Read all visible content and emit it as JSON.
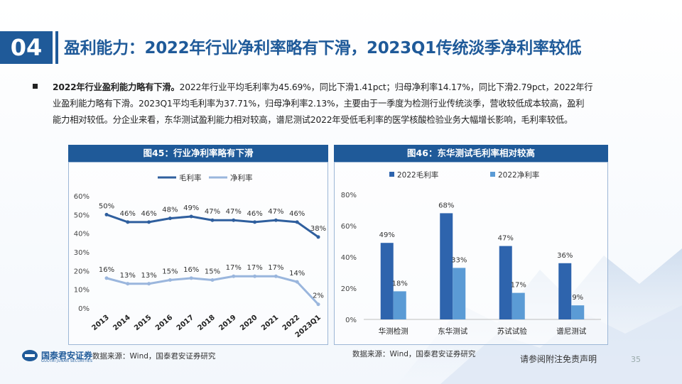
{
  "header": {
    "section_number": "04",
    "title": "盈利能力：2022年行业净利率略有下滑，2023Q1传统淡季净利率较低"
  },
  "bullet": {
    "lead": "2022年行业盈利能力略有下滑。",
    "line1": "2022年行业平均毛利率为45.69%，同比下滑1.41pct；归母净利率14.17%，同比下滑2.79pct，2022年行",
    "line2": "业盈利能力略有下滑。2023Q1平均毛利率为37.71%，归母净利率2.13%，主要由于一季度为检测行业传统淡季，营收较低成本较高，盈利",
    "line3": "能力相对较低。分企业来看，东华测试盈利能力相对较高，谱尼测试2022年受低毛利率的医学核酸检验业务大幅增长影响，毛利率较低。"
  },
  "chart1": {
    "panel_title": "图45：行业净利率略有下滑",
    "source": "数据来源：Wind，国泰君安证券研究"
  },
  "chart2": {
    "panel_title": "图46：东华测试毛利率相对较高",
    "source": "数据来源：Wind，国泰君安证券研究"
  },
  "footer": {
    "logo_text": "国泰君安证券",
    "logo_sub": "GUOTAI JUNAN SECURITIES",
    "disclaimer": "请参阅附注免责声明",
    "page_number": "35"
  },
  "colors": {
    "brand": "#1f5a99",
    "series_dark": "#2f5f9e",
    "series_light": "#9ab6dd",
    "bar_dark": "#2e64ad",
    "bar_light": "#5b9bd5"
  },
  "chart_data": [
    {
      "type": "line",
      "title": "图45：行业净利率略有下滑",
      "x": [
        "2013",
        "2014",
        "2015",
        "2016",
        "2017",
        "2018",
        "2019",
        "2020",
        "2021",
        "2022",
        "2023Q1"
      ],
      "series": [
        {
          "name": "毛利率",
          "values": [
            50,
            46,
            46,
            48,
            49,
            47,
            47,
            46,
            47,
            46,
            38
          ],
          "labels": [
            "50%",
            "46%",
            "46%",
            "48%",
            "49%",
            "47%",
            "47%",
            "46%",
            "47%",
            "46%",
            "38%"
          ]
        },
        {
          "name": "净利率",
          "values": [
            16,
            13,
            13,
            15,
            16,
            15,
            17,
            17,
            17,
            14,
            2
          ],
          "labels": [
            "16%",
            "13%",
            "13%",
            "15%",
            "16%",
            "15%",
            "17%",
            "17%",
            "17%",
            "14%",
            "2%"
          ]
        }
      ],
      "ylim": [
        0,
        60
      ],
      "yticks": [
        "0%",
        "10%",
        "20%",
        "30%",
        "40%",
        "50%",
        "60%"
      ],
      "ytick_values": [
        0,
        10,
        20,
        30,
        40,
        50,
        60
      ],
      "legend": "top"
    },
    {
      "type": "bar",
      "title": "图46：东华测试毛利率相对较高",
      "categories": [
        "华测检测",
        "东华测试",
        "苏试试验",
        "谱尼测试"
      ],
      "series": [
        {
          "name": "2022毛利率",
          "values": [
            49,
            68,
            47,
            36
          ],
          "labels": [
            "49%",
            "68%",
            "47%",
            "36%"
          ]
        },
        {
          "name": "2022净利率",
          "values": [
            18,
            33,
            17,
            9
          ],
          "labels": [
            "18%",
            "33%",
            "17%",
            "9%"
          ]
        }
      ],
      "ylim": [
        0,
        80
      ],
      "yticks": [
        "0%",
        "20%",
        "40%",
        "60%",
        "80%"
      ],
      "ytick_values": [
        0,
        20,
        40,
        60,
        80
      ],
      "legend": "top"
    }
  ]
}
